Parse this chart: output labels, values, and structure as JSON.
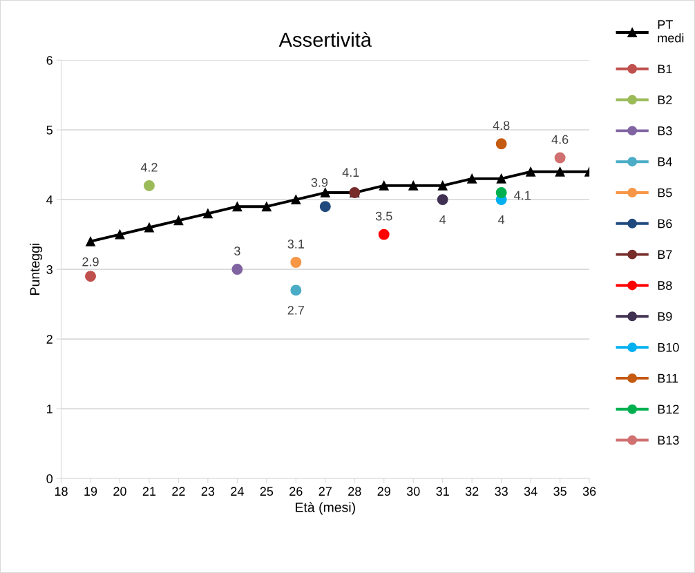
{
  "chart_data": {
    "type": "line",
    "title": "Assertività",
    "xlabel": "Età (mesi)",
    "ylabel": "Punteggi",
    "xlim": [
      18,
      36
    ],
    "xticks": [
      18,
      19,
      20,
      21,
      22,
      23,
      24,
      25,
      26,
      27,
      28,
      29,
      30,
      31,
      32,
      33,
      34,
      35,
      36
    ],
    "ylim": [
      0,
      6
    ],
    "yticks": [
      0,
      1,
      2,
      3,
      4,
      5,
      6
    ],
    "grid": "y",
    "legend": "right",
    "series": [
      {
        "name": "PT medi",
        "color": "#000000",
        "marker": "triangle",
        "x": [
          19,
          20,
          21,
          22,
          23,
          24,
          25,
          26,
          27,
          28,
          29,
          30,
          31,
          32,
          33,
          34,
          35,
          36
        ],
        "values": [
          3.4,
          3.5,
          3.6,
          3.7,
          3.8,
          3.9,
          3.9,
          4.0,
          4.1,
          4.1,
          4.2,
          4.2,
          4.2,
          4.3,
          4.3,
          4.4,
          4.4,
          4.4
        ]
      },
      {
        "name": "B1",
        "type": "scatter",
        "color": "#c0504d",
        "marker": "circle",
        "x": [
          19
        ],
        "values": [
          2.9
        ],
        "value_labels": [
          "2.9"
        ]
      },
      {
        "name": "B2",
        "type": "scatter",
        "color": "#9bbb59",
        "marker": "circle",
        "x": [
          21
        ],
        "values": [
          4.2
        ],
        "value_labels": [
          "4.2"
        ]
      },
      {
        "name": "B3",
        "type": "scatter",
        "color": "#8064a2",
        "marker": "circle",
        "x": [
          24
        ],
        "values": [
          3.0
        ],
        "value_labels": [
          "3"
        ]
      },
      {
        "name": "B4",
        "type": "scatter",
        "color": "#4bacc6",
        "marker": "circle",
        "x": [
          26
        ],
        "values": [
          2.7
        ],
        "value_labels": [
          "2.7"
        ]
      },
      {
        "name": "B5",
        "type": "scatter",
        "color": "#f79646",
        "marker": "circle",
        "x": [
          26
        ],
        "values": [
          3.1
        ],
        "value_labels": [
          "3.1"
        ]
      },
      {
        "name": "B6",
        "type": "scatter",
        "color": "#1f497d",
        "marker": "circle",
        "x": [
          27
        ],
        "values": [
          3.9
        ],
        "value_labels": [
          "3.9"
        ]
      },
      {
        "name": "B7",
        "type": "scatter",
        "color": "#772c2a",
        "marker": "circle",
        "x": [
          28
        ],
        "values": [
          4.1
        ],
        "value_labels": [
          "4.1"
        ]
      },
      {
        "name": "B8",
        "type": "scatter",
        "color": "#ff0000",
        "marker": "circle",
        "x": [
          29
        ],
        "values": [
          3.5
        ],
        "value_labels": [
          "3.5"
        ]
      },
      {
        "name": "B9",
        "type": "scatter",
        "color": "#403152",
        "marker": "circle",
        "x": [
          31
        ],
        "values": [
          4.0
        ],
        "value_labels": [
          "4"
        ]
      },
      {
        "name": "B10",
        "type": "scatter",
        "color": "#00b0f0",
        "marker": "circle",
        "x": [
          33
        ],
        "values": [
          4.0
        ],
        "value_labels": [
          "4"
        ]
      },
      {
        "name": "B11",
        "type": "scatter",
        "color": "#c55a11",
        "marker": "circle",
        "x": [
          33
        ],
        "values": [
          4.8
        ],
        "value_labels": [
          "4.8"
        ]
      },
      {
        "name": "B12",
        "type": "scatter",
        "color": "#00b050",
        "marker": "circle",
        "x": [
          33
        ],
        "values": [
          4.1
        ],
        "value_labels": [
          "4.1"
        ]
      },
      {
        "name": "B13",
        "type": "scatter",
        "color": "#d07070",
        "marker": "circle",
        "x": [
          35
        ],
        "values": [
          4.6
        ],
        "value_labels": [
          "4.6"
        ]
      }
    ]
  }
}
